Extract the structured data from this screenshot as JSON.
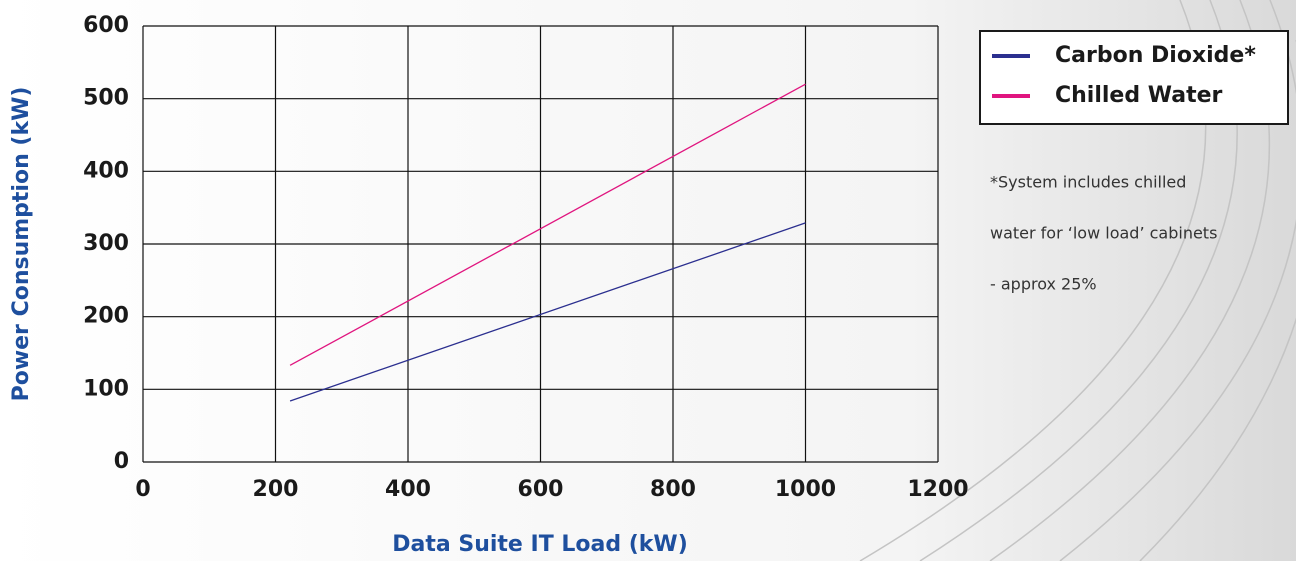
{
  "chart_data": {
    "type": "line",
    "x_label": "Data Suite IT Load (kW)",
    "y_label": "Power Consumption (kW)",
    "x": [
      222,
      1000
    ],
    "series": [
      {
        "name": "Carbon Dioxide*",
        "color": "#2b2f8f",
        "values": [
          84,
          329
        ]
      },
      {
        "name": "Chilled Water",
        "color": "#e0157f",
        "values": [
          133,
          520
        ]
      }
    ],
    "xlim": [
      0,
      1200
    ],
    "xticks": [
      0,
      200,
      400,
      600,
      800,
      1000,
      1200
    ],
    "ylim": [
      0,
      600
    ],
    "yticks": [
      0,
      100,
      200,
      300,
      400,
      500,
      600
    ],
    "grid": true,
    "legend": "right",
    "annotation": [
      "*System includes chilled",
      "water for ‘low load’ cabinets",
      "- approx 25%"
    ]
  }
}
